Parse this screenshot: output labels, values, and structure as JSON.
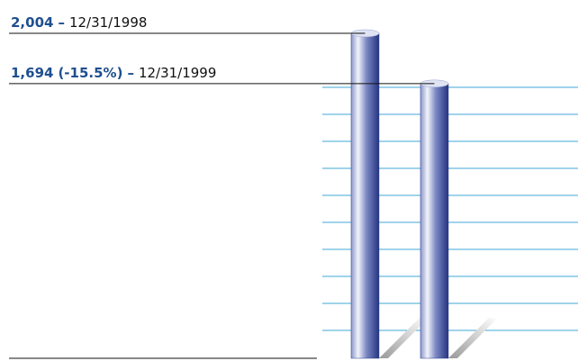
{
  "chart_data": {
    "type": "bar",
    "categories": [
      "12/31/1998",
      "12/31/1999"
    ],
    "values": [
      2004,
      1694
    ],
    "value_labels": [
      "2,004",
      "1,694"
    ],
    "annotation": "(-15.5%)",
    "separator": "–",
    "color": "#2c3f8c"
  }
}
